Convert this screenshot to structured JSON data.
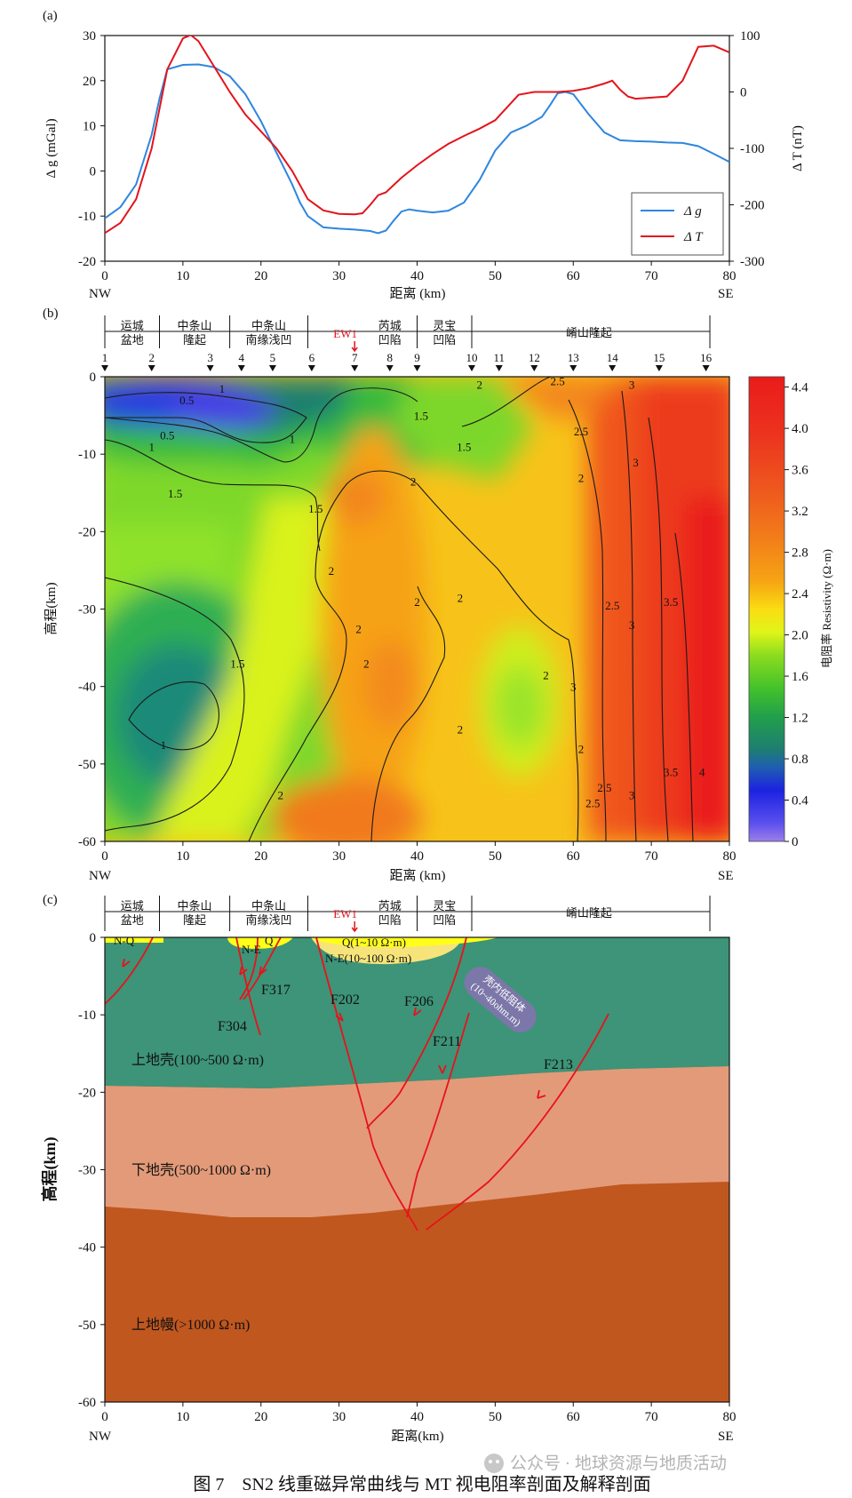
{
  "panel_labels": {
    "a": "(a)",
    "b": "(b)",
    "c": "(c)"
  },
  "caption": "图 7　SN2 线重磁异常曲线与 MT 视电阻率剖面及解释剖面",
  "watermark": "公众号 · 地球资源与地质活动",
  "x_axis": {
    "label": "距离 (km)",
    "label_c": "距离(km)",
    "ticks": [
      "0",
      "10",
      "20",
      "30",
      "40",
      "50",
      "60",
      "70",
      "80"
    ],
    "left_end": "NW",
    "right_end": "SE"
  },
  "panel_a": {
    "ylabel_left": "Δ g (mGal)",
    "ylabel_right": "Δ T (nT)",
    "left_ticks": [
      "30",
      "20",
      "10",
      "0",
      "-10",
      "-20"
    ],
    "right_ticks": [
      "100",
      "0",
      "-100",
      "-200",
      "-300"
    ],
    "legend": {
      "dg": "Δ g",
      "dt": "Δ T"
    },
    "colors": {
      "dg": "#2e86de",
      "dt": "#e3141b"
    }
  },
  "chart_data": {
    "type": "line",
    "xlabel": "距离 (km)",
    "xlim": [
      0,
      80
    ],
    "series": [
      {
        "name": "Δ g",
        "axis": "left",
        "unit": "mGal",
        "ylim": [
          -20,
          30
        ],
        "x": [
          0,
          2,
          4,
          6,
          7,
          8,
          10,
          12,
          14,
          16,
          18,
          20,
          22,
          24,
          25,
          26,
          28,
          30,
          32,
          34,
          35,
          36,
          37,
          38,
          39,
          40,
          42,
          44,
          46,
          48,
          50,
          52,
          54,
          56,
          57,
          58,
          59,
          60,
          62,
          64,
          66,
          68,
          70,
          72,
          74,
          76,
          78,
          80
        ],
        "y": [
          -10.5,
          -8,
          -3,
          8,
          16,
          22.5,
          23.5,
          23.6,
          23,
          21,
          17,
          11,
          4,
          -3,
          -7,
          -10,
          -12.5,
          -12.8,
          -13,
          -13.3,
          -13.8,
          -13.2,
          -11,
          -9,
          -8.5,
          -8.8,
          -9.2,
          -8.8,
          -7,
          -2,
          4.5,
          8.5,
          10,
          12,
          14.5,
          17.2,
          17.5,
          17,
          12.5,
          8.5,
          6.8,
          6.6,
          6.5,
          6.3,
          6.2,
          5.5,
          3.8,
          2
        ]
      },
      {
        "name": "Δ T",
        "axis": "right",
        "unit": "nT",
        "ylim": [
          -300,
          100
        ],
        "x": [
          0,
          2,
          4,
          6,
          8,
          10,
          11,
          12,
          14,
          16,
          18,
          20,
          22,
          24,
          26,
          28,
          30,
          32,
          33,
          34,
          35,
          36,
          38,
          40,
          42,
          44,
          46,
          48,
          50,
          52,
          53,
          55,
          58,
          60,
          62,
          64,
          65,
          66,
          67,
          68,
          70,
          72,
          74,
          75,
          76,
          78,
          80
        ],
        "y": [
          -250,
          -232,
          -190,
          -100,
          40,
          95,
          101,
          90,
          45,
          0,
          -40,
          -70,
          -100,
          -140,
          -190,
          -210,
          -216,
          -217,
          -215,
          -200,
          -183,
          -178,
          -152,
          -130,
          -110,
          -92,
          -78,
          -65,
          -50,
          -20,
          -5,
          0,
          0,
          2,
          7,
          15,
          20,
          4,
          -8,
          -12,
          -10,
          -8,
          20,
          50,
          80,
          82,
          70
        ]
      }
    ]
  },
  "panel_b": {
    "ylabel": "高程(km)",
    "y_ticks": [
      "0",
      "-10",
      "-20",
      "-30",
      "-40",
      "-50",
      "-60"
    ],
    "colorbar": {
      "title": "电阻率 Resistivity (Ω·m)",
      "ticks": [
        "4.4",
        "4.0",
        "3.6",
        "3.2",
        "2.8",
        "2.4",
        "2.0",
        "1.6",
        "1.2",
        "0.8",
        "0.4",
        "0"
      ]
    },
    "regions": [
      "运城\n盆地",
      "中条山\n隆起",
      "中条山\n南缘浅凹",
      "芮城\n凹陷",
      "灵宝\n凹陷",
      "崤山隆起"
    ],
    "ew1": "EW1",
    "stations": [
      "1",
      "2",
      "3",
      "4",
      "5",
      "6",
      "7",
      "8",
      "9",
      "10",
      "11",
      "12",
      "13",
      "14",
      "15",
      "16"
    ],
    "station_x": [
      0,
      6,
      13.5,
      17.5,
      21.5,
      26.5,
      32,
      36.5,
      40,
      47,
      50.5,
      55,
      60,
      65,
      71,
      77
    ],
    "contour_labels": [
      "0.5",
      "1",
      "0.5",
      "1",
      "1.5",
      "1.5",
      "1",
      "1.5",
      "1.5",
      "2",
      "2",
      "2",
      "2",
      "2",
      "2",
      "2",
      "2",
      "2",
      "2",
      "1.5",
      "1",
      "2.5",
      "2.5",
      "3",
      "3",
      "2.5",
      "3",
      "3.5",
      "2.5",
      "3",
      "3.5",
      "4",
      "2.5",
      "3",
      "2",
      "2"
    ]
  },
  "panel_c": {
    "ylabel": "高程(km)",
    "y_ticks": [
      "0",
      "-10",
      "-20",
      "-30",
      "-40",
      "-50",
      "-60"
    ],
    "regions": [
      "运城\n盆地",
      "中条山\n隆起",
      "中条山\n南缘浅凹",
      "芮城\n凹陷",
      "灵宝\n凹陷",
      "崤山隆起"
    ],
    "ew1": "EW1",
    "surface_labels": [
      "N-Q",
      "N-E",
      "Q",
      "Q(1~10 Ω·m)",
      "N-E(10~100 Ω·m)"
    ],
    "faults": [
      "F317",
      "F304",
      "F202",
      "F206",
      "F211",
      "F213"
    ],
    "low_res_body": "壳内低阻体\n(10~40ohm.m)",
    "units": {
      "upper_crust": "上地壳(100~500 Ω·m)",
      "lower_crust": "下地壳(500~1000 Ω·m)",
      "upper_mantle": "上地幔(>1000 Ω·m)"
    },
    "colors": {
      "upper_crust": "#3d9478",
      "lower_crust": "#e39a79",
      "upper_mantle": "#c0571f",
      "sediment": "#f6e47a",
      "sediment_top": "#ffff1a"
    }
  }
}
